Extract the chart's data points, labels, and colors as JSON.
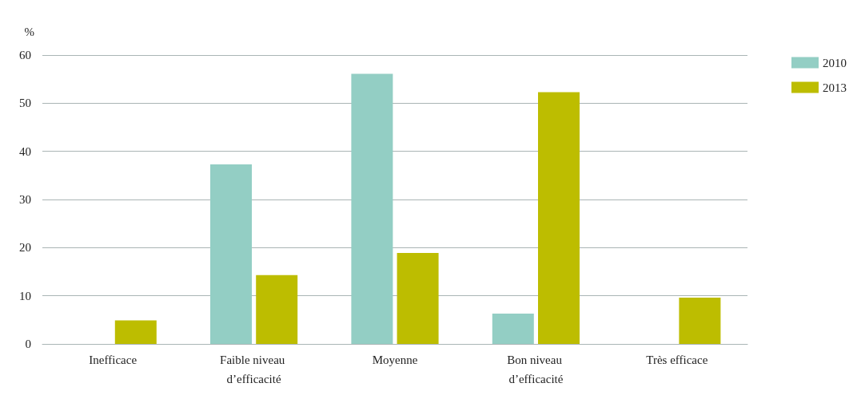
{
  "chart_data": {
    "type": "bar",
    "ylabel": "%",
    "categories": [
      "Inefficace",
      "Faible niveau d’efficacité",
      "Moyenne",
      "Bon niveau d’efficacité",
      "Très efficace"
    ],
    "series": [
      {
        "name": "2010",
        "color": "#93cec4",
        "values": [
          0,
          37.3,
          56.1,
          6.3,
          0
        ]
      },
      {
        "name": "2013",
        "color": "#bdbd00",
        "values": [
          4.9,
          14.3,
          18.9,
          52.3,
          9.6
        ]
      }
    ],
    "ylim": [
      0,
      60
    ],
    "yticks": [
      0,
      10,
      20,
      30,
      40,
      50,
      60
    ],
    "grid": "y",
    "legend": "top right"
  }
}
